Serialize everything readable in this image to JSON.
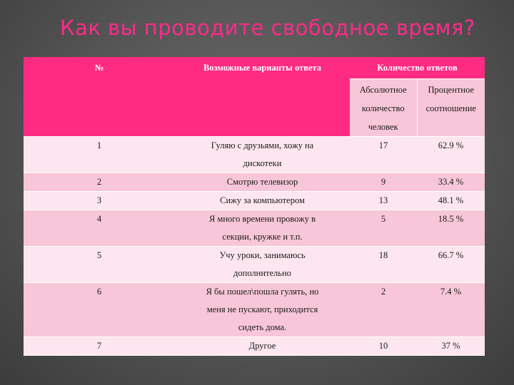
{
  "title": "Как вы проводите свободное время?",
  "table": {
    "headers": {
      "number": "№",
      "options": "Возможные варианты ответа",
      "count": "Количество ответов",
      "absolute_line1": "Абсолютное",
      "absolute_line2": "количество",
      "absolute_line3": "человек",
      "percent_line1": "Процентное",
      "percent_line2": "соотношение"
    },
    "rows": [
      {
        "n": "1",
        "option_line1": "Гуляю с друзьями, хожу на",
        "option_line2": "дискотеки",
        "option_line3": "",
        "abs": "17",
        "pct": "62.9 %"
      },
      {
        "n": "2",
        "option_line1": "Смотрю телевизор",
        "option_line2": "",
        "option_line3": "",
        "abs": "9",
        "pct": "33.4 %"
      },
      {
        "n": "3",
        "option_line1": "Сижу за компьютером",
        "option_line2": "",
        "option_line3": "",
        "abs": "13",
        "pct": "48.1 %"
      },
      {
        "n": "4",
        "option_line1": "Я много времени провожу в",
        "option_line2": "секции, кружке и т.п.",
        "option_line3": "",
        "abs": "5",
        "pct": "18.5 %"
      },
      {
        "n": "5",
        "option_line1": "Учу уроки, занимаюсь",
        "option_line2": "дополнительно",
        "option_line3": "",
        "abs": "18",
        "pct": "66.7 %"
      },
      {
        "n": "6",
        "option_line1": "Я бы пошел\\пошла гулять, но",
        "option_line2": "меня не пускают, приходится",
        "option_line3": "сидеть дома.",
        "abs": "2",
        "pct": "7.4 %"
      },
      {
        "n": "7",
        "option_line1": "Другое",
        "option_line2": "",
        "option_line3": "",
        "abs": "10",
        "pct": "37 %"
      }
    ]
  }
}
